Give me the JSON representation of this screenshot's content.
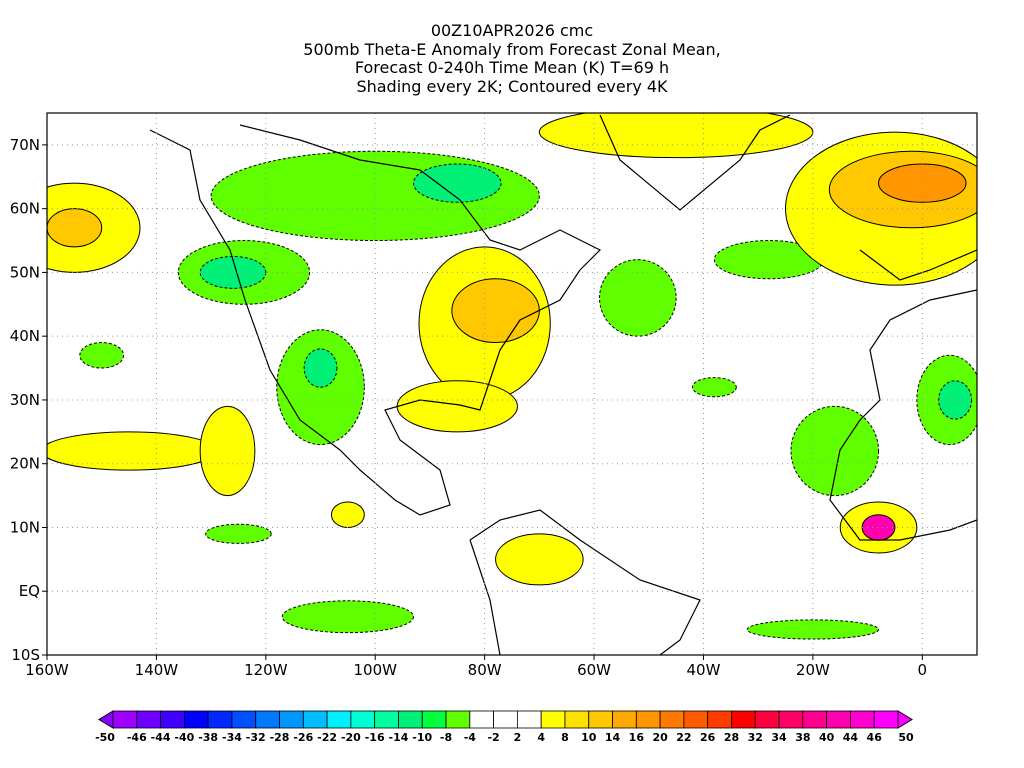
{
  "title": {
    "line1": "00Z10APR2026 cmc",
    "line2": "500mb Theta-E Anomaly from Forecast Zonal Mean,",
    "line3": "Forecast 0-240h Time Mean (K) T=69 h",
    "line4": "Shading every 2K; Contoured every 4K"
  },
  "map": {
    "lon_range": [
      -160,
      10
    ],
    "lat_range": [
      -10,
      75
    ],
    "lon_ticks": [
      {
        "v": -160,
        "label": "160W"
      },
      {
        "v": -140,
        "label": "140W"
      },
      {
        "v": -120,
        "label": "120W"
      },
      {
        "v": -100,
        "label": "100W"
      },
      {
        "v": -80,
        "label": "80W"
      },
      {
        "v": -60,
        "label": "60W"
      },
      {
        "v": -40,
        "label": "40W"
      },
      {
        "v": -20,
        "label": "20W"
      },
      {
        "v": 0,
        "label": "0"
      }
    ],
    "lat_ticks": [
      {
        "v": -10,
        "label": "10S"
      },
      {
        "v": 0,
        "label": "EQ"
      },
      {
        "v": 10,
        "label": "10N"
      },
      {
        "v": 20,
        "label": "20N"
      },
      {
        "v": 30,
        "label": "30N"
      },
      {
        "v": 40,
        "label": "40N"
      },
      {
        "v": 50,
        "label": "50N"
      },
      {
        "v": 60,
        "label": "60N"
      },
      {
        "v": 70,
        "label": "70N"
      }
    ],
    "anomaly_regions": [
      {
        "lon": -100,
        "lat": 62,
        "rlon": 30,
        "rlat": 7,
        "value": -8
      },
      {
        "lon": -85,
        "lat": 64,
        "rlon": 8,
        "rlat": 3,
        "value": -14
      },
      {
        "lon": -124,
        "lat": 50,
        "rlon": 12,
        "rlat": 5,
        "value": -8
      },
      {
        "lon": -126,
        "lat": 50,
        "rlon": 6,
        "rlat": 2.5,
        "value": -14
      },
      {
        "lon": -110,
        "lat": 32,
        "rlon": 8,
        "rlat": 9,
        "value": -8
      },
      {
        "lon": -110,
        "lat": 35,
        "rlon": 3,
        "rlat": 3,
        "value": -14
      },
      {
        "lon": -52,
        "lat": 46,
        "rlon": 7,
        "rlat": 6,
        "value": -8
      },
      {
        "lon": -28,
        "lat": 52,
        "rlon": 10,
        "rlat": 3,
        "value": -8
      },
      {
        "lon": -150,
        "lat": 37,
        "rlon": 4,
        "rlat": 2,
        "value": -8
      },
      {
        "lon": -16,
        "lat": 22,
        "rlon": 8,
        "rlat": 7,
        "value": -8
      },
      {
        "lon": 5,
        "lat": 30,
        "rlon": 6,
        "rlat": 7,
        "value": -8
      },
      {
        "lon": 6,
        "lat": 30,
        "rlon": 3,
        "rlat": 3,
        "value": -14
      },
      {
        "lon": -38,
        "lat": 32,
        "rlon": 4,
        "rlat": 1.5,
        "value": -8
      },
      {
        "lon": -105,
        "lat": -4,
        "rlon": 12,
        "rlat": 2.5,
        "value": -8
      },
      {
        "lon": -125,
        "lat": 9,
        "rlon": 6,
        "rlat": 1.5,
        "value": -8
      },
      {
        "lon": -20,
        "lat": -6,
        "rlon": 12,
        "rlat": 1.5,
        "value": -8
      },
      {
        "lon": -80,
        "lat": 42,
        "rlon": 12,
        "rlat": 12,
        "value": 4
      },
      {
        "lon": -78,
        "lat": 44,
        "rlon": 8,
        "rlat": 5,
        "value": 10
      },
      {
        "lon": -85,
        "lat": 29,
        "rlon": 11,
        "rlat": 4,
        "value": 4
      },
      {
        "lon": -45,
        "lat": 72,
        "rlon": 25,
        "rlat": 4,
        "value": 4
      },
      {
        "lon": -5,
        "lat": 60,
        "rlon": 20,
        "rlat": 12,
        "value": 4
      },
      {
        "lon": -2,
        "lat": 63,
        "rlon": 15,
        "rlat": 6,
        "value": 10
      },
      {
        "lon": 0,
        "lat": 64,
        "rlon": 8,
        "rlat": 3,
        "value": 16
      },
      {
        "lon": -155,
        "lat": 57,
        "rlon": 12,
        "rlat": 7,
        "value": 4
      },
      {
        "lon": -155,
        "lat": 57,
        "rlon": 5,
        "rlat": 3,
        "value": 10
      },
      {
        "lon": -145,
        "lat": 22,
        "rlon": 16,
        "rlat": 3,
        "value": 4
      },
      {
        "lon": -127,
        "lat": 22,
        "rlon": 5,
        "rlat": 7,
        "value": 4
      },
      {
        "lon": -70,
        "lat": 5,
        "rlon": 8,
        "rlat": 4,
        "value": 4
      },
      {
        "lon": -105,
        "lat": 12,
        "rlon": 3,
        "rlat": 2,
        "value": 4
      },
      {
        "lon": -8,
        "lat": 10,
        "rlon": 7,
        "rlat": 4,
        "value": 4
      },
      {
        "lon": -8,
        "lat": 10,
        "rlon": 3,
        "rlat": 2,
        "value": 40
      }
    ]
  },
  "colorbar": {
    "labels": [
      "-50",
      "-46",
      "-44",
      "-40",
      "-38",
      "-34",
      "-32",
      "-28",
      "-26",
      "-22",
      "-20",
      "-16",
      "-14",
      "-10",
      "-8",
      "-4",
      "-2",
      "2",
      "4",
      "8",
      "10",
      "14",
      "16",
      "20",
      "22",
      "26",
      "28",
      "32",
      "34",
      "38",
      "40",
      "44",
      "46",
      "50"
    ],
    "colors": [
      "#a000ff",
      "#6e00ff",
      "#4000ff",
      "#0000ff",
      "#0028ff",
      "#0050ff",
      "#0078ff",
      "#0096ff",
      "#00beff",
      "#00f0ff",
      "#00ffd2",
      "#00ffa0",
      "#00f078",
      "#00ff3c",
      "#60ff00",
      "#ffffff",
      "#ffffff",
      "#ffffff",
      "#ffff00",
      "#ffe100",
      "#ffc800",
      "#ffaa00",
      "#ff9600",
      "#ff7800",
      "#ff5a00",
      "#ff3c00",
      "#ff0000",
      "#ff0040",
      "#ff0064",
      "#ff0090",
      "#ff00b0",
      "#ff00d0",
      "#ff00ff"
    ],
    "under_color": "#8a00ff",
    "over_color": "#ff00ff"
  }
}
